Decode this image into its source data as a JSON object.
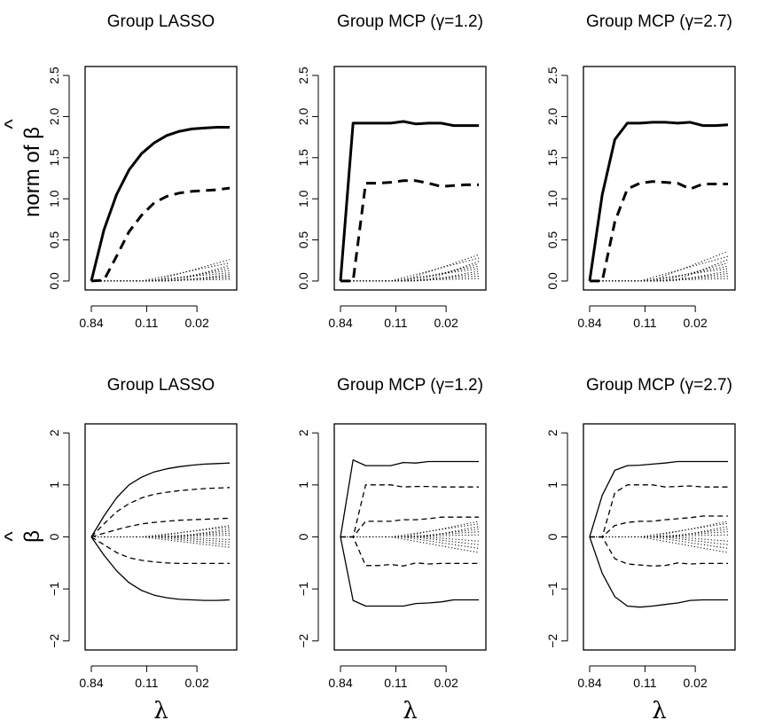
{
  "colors": {
    "ink": "#000000",
    "background": "#ffffff"
  },
  "row_labels": {
    "top_ylabel": "norm of β",
    "top_ylabel_text": "norm of",
    "bottom_ylabel": "β",
    "hat": "^",
    "beta": "β"
  },
  "xlabel": "λ",
  "chart_data": [
    {
      "type": "line",
      "title": "Group LASSO",
      "xlabel": "",
      "ylabel": "norm of β",
      "x_scale": "log-lambda (decreasing left to right)",
      "xticks": [
        "0.84",
        "0.11",
        "0.02"
      ],
      "ylim": [
        0,
        2.5
      ],
      "yticks": [
        "0.0",
        "0.5",
        "1.0",
        "1.5",
        "2.0",
        "2.5"
      ],
      "grid": false,
      "legend": "none",
      "series": [
        {
          "style": "solid-bold",
          "values": [
            0,
            0.62,
            1.05,
            1.35,
            1.55,
            1.68,
            1.77,
            1.82,
            1.85,
            1.86,
            1.87,
            1.87
          ]
        },
        {
          "style": "dashed-bold",
          "values": [
            0,
            0.01,
            0.3,
            0.6,
            0.8,
            0.95,
            1.03,
            1.07,
            1.09,
            1.1,
            1.11,
            1.13
          ]
        },
        {
          "style": "dotted",
          "count": 10,
          "final_values": [
            0.02,
            0.04,
            0.06,
            0.08,
            0.1,
            0.13,
            0.16,
            0.19,
            0.22,
            0.26
          ]
        }
      ]
    },
    {
      "type": "line",
      "title": "Group MCP (γ=1.2)",
      "xlabel": "",
      "ylabel": "",
      "x_scale": "log-lambda (decreasing left to right)",
      "xticks": [
        "0.84",
        "0.11",
        "0.02"
      ],
      "ylim": [
        0,
        2.5
      ],
      "yticks": [
        "0.0",
        "0.5",
        "1.0",
        "1.5",
        "2.0",
        "2.5"
      ],
      "grid": false,
      "legend": "none",
      "series": [
        {
          "style": "solid-bold",
          "values": [
            0,
            1.92,
            1.92,
            1.92,
            1.92,
            1.94,
            1.91,
            1.92,
            1.92,
            1.89,
            1.89,
            1.89
          ]
        },
        {
          "style": "dashed-bold",
          "values": [
            0,
            0,
            1.19,
            1.19,
            1.2,
            1.22,
            1.22,
            1.19,
            1.15,
            1.16,
            1.17,
            1.17
          ]
        },
        {
          "style": "dotted",
          "count": 10,
          "final_values": [
            0.03,
            0.06,
            0.09,
            0.12,
            0.15,
            0.18,
            0.21,
            0.24,
            0.28,
            0.32
          ]
        }
      ]
    },
    {
      "type": "line",
      "title": "Group MCP (γ=2.7)",
      "xlabel": "",
      "ylabel": "",
      "x_scale": "log-lambda (decreasing left to right)",
      "xticks": [
        "0.84",
        "0.11",
        "0.02"
      ],
      "ylim": [
        0,
        2.5
      ],
      "yticks": [
        "0.0",
        "0.5",
        "1.0",
        "1.5",
        "2.0",
        "2.5"
      ],
      "grid": false,
      "legend": "none",
      "series": [
        {
          "style": "solid-bold",
          "values": [
            0,
            1.05,
            1.72,
            1.92,
            1.92,
            1.93,
            1.93,
            1.92,
            1.93,
            1.89,
            1.89,
            1.9
          ]
        },
        {
          "style": "dashed-bold",
          "values": [
            0,
            0,
            0.72,
            1.12,
            1.19,
            1.21,
            1.2,
            1.19,
            1.12,
            1.18,
            1.18,
            1.18
          ]
        },
        {
          "style": "dotted",
          "count": 10,
          "final_values": [
            0.03,
            0.06,
            0.09,
            0.12,
            0.15,
            0.18,
            0.22,
            0.26,
            0.3,
            0.36
          ]
        }
      ]
    },
    {
      "type": "line",
      "title": "Group LASSO",
      "xlabel": "λ",
      "ylabel": "β",
      "x_scale": "log-lambda (decreasing left to right)",
      "xticks": [
        "0.84",
        "0.11",
        "0.02"
      ],
      "ylim": [
        -2,
        2
      ],
      "yticks": [
        "−2",
        "−1",
        "0",
        "1",
        "2"
      ],
      "grid": false,
      "legend": "none",
      "series": [
        {
          "style": "solid",
          "values": [
            0,
            0.4,
            0.75,
            1.0,
            1.15,
            1.25,
            1.31,
            1.35,
            1.38,
            1.4,
            1.41,
            1.42
          ]
        },
        {
          "style": "solid",
          "values": [
            0,
            -0.35,
            -0.65,
            -0.88,
            -1.03,
            -1.12,
            -1.17,
            -1.2,
            -1.21,
            -1.22,
            -1.22,
            -1.21
          ]
        },
        {
          "style": "dashed",
          "values": [
            0,
            0.25,
            0.48,
            0.64,
            0.75,
            0.82,
            0.86,
            0.89,
            0.91,
            0.93,
            0.94,
            0.95
          ]
        },
        {
          "style": "dashed",
          "values": [
            0,
            -0.15,
            -0.3,
            -0.4,
            -0.45,
            -0.48,
            -0.5,
            -0.51,
            -0.51,
            -0.51,
            -0.51,
            -0.51
          ]
        },
        {
          "style": "dashed",
          "values": [
            0,
            0.07,
            0.14,
            0.2,
            0.25,
            0.28,
            0.3,
            0.32,
            0.33,
            0.34,
            0.35,
            0.36
          ]
        },
        {
          "style": "dotted",
          "count": 10,
          "final_values": [
            -0.2,
            -0.15,
            -0.1,
            -0.05,
            0.03,
            0.07,
            0.11,
            0.15,
            0.19,
            0.22
          ]
        }
      ]
    },
    {
      "type": "line",
      "title": "Group MCP (γ=1.2)",
      "xlabel": "λ",
      "ylabel": "",
      "x_scale": "log-lambda (decreasing left to right)",
      "xticks": [
        "0.84",
        "0.11",
        "0.02"
      ],
      "ylim": [
        -2,
        2
      ],
      "yticks": [
        "−2",
        "−1",
        "0",
        "1",
        "2"
      ],
      "grid": false,
      "legend": "none",
      "series": [
        {
          "style": "solid",
          "values": [
            0,
            1.48,
            1.37,
            1.37,
            1.37,
            1.43,
            1.42,
            1.45,
            1.45,
            1.45,
            1.45,
            1.45
          ]
        },
        {
          "style": "solid",
          "values": [
            0,
            -1.22,
            -1.33,
            -1.33,
            -1.33,
            -1.33,
            -1.28,
            -1.27,
            -1.25,
            -1.21,
            -1.21,
            -1.21
          ]
        },
        {
          "style": "dashed",
          "values": [
            0,
            0,
            1.0,
            1.0,
            1.0,
            0.96,
            0.97,
            0.97,
            0.96,
            0.96,
            0.96,
            0.96
          ]
        },
        {
          "style": "dashed",
          "values": [
            0,
            0,
            -0.55,
            -0.55,
            -0.53,
            -0.56,
            -0.5,
            -0.52,
            -0.51,
            -0.51,
            -0.51,
            -0.51
          ]
        },
        {
          "style": "dashed",
          "values": [
            0,
            0,
            0.3,
            0.3,
            0.3,
            0.33,
            0.33,
            0.35,
            0.38,
            0.38,
            0.38,
            0.38
          ]
        },
        {
          "style": "dotted",
          "count": 10,
          "final_values": [
            -0.3,
            -0.22,
            -0.15,
            -0.08,
            0.04,
            0.1,
            0.15,
            0.2,
            0.25,
            0.3
          ]
        }
      ]
    },
    {
      "type": "line",
      "title": "Group MCP (γ=2.7)",
      "xlabel": "λ",
      "ylabel": "",
      "x_scale": "log-lambda (decreasing left to right)",
      "xticks": [
        "0.84",
        "0.11",
        "0.02"
      ],
      "ylim": [
        -2,
        2
      ],
      "yticks": [
        "−2",
        "−1",
        "0",
        "1",
        "2"
      ],
      "grid": false,
      "legend": "none",
      "series": [
        {
          "style": "solid",
          "values": [
            0,
            0.8,
            1.28,
            1.37,
            1.38,
            1.4,
            1.42,
            1.45,
            1.45,
            1.45,
            1.45,
            1.45
          ]
        },
        {
          "style": "solid",
          "values": [
            0,
            -0.7,
            -1.15,
            -1.33,
            -1.35,
            -1.33,
            -1.3,
            -1.27,
            -1.22,
            -1.21,
            -1.21,
            -1.21
          ]
        },
        {
          "style": "dashed",
          "values": [
            0,
            0,
            0.85,
            1.0,
            1.0,
            1.0,
            0.96,
            0.97,
            0.98,
            0.96,
            0.96,
            0.96
          ]
        },
        {
          "style": "dashed",
          "values": [
            0,
            0,
            -0.42,
            -0.52,
            -0.54,
            -0.56,
            -0.55,
            -0.5,
            -0.52,
            -0.51,
            -0.51,
            -0.51
          ]
        },
        {
          "style": "dashed",
          "values": [
            0,
            0,
            0.22,
            0.28,
            0.3,
            0.3,
            0.33,
            0.35,
            0.37,
            0.4,
            0.4,
            0.4
          ]
        },
        {
          "style": "dotted",
          "count": 10,
          "final_values": [
            -0.3,
            -0.22,
            -0.15,
            -0.08,
            0.04,
            0.1,
            0.15,
            0.2,
            0.26,
            0.3
          ]
        }
      ]
    }
  ]
}
